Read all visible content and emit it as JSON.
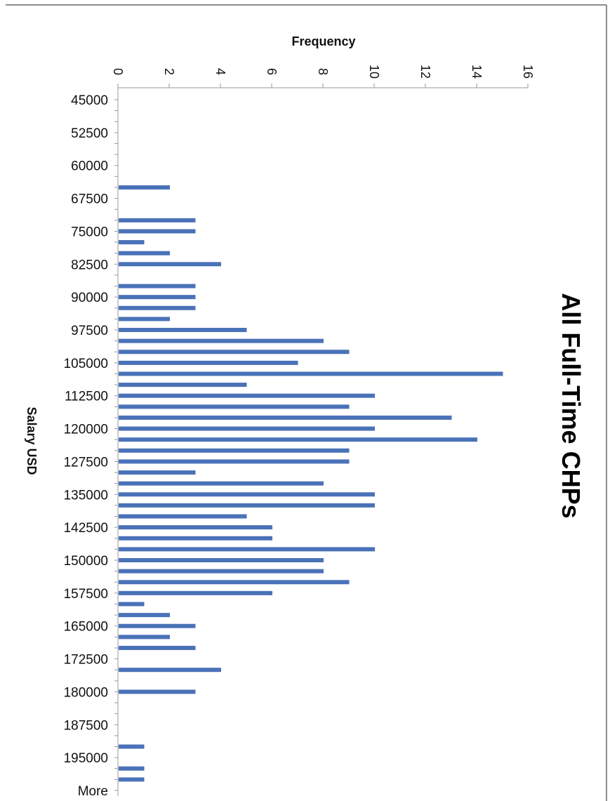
{
  "chart_data": {
    "type": "bar",
    "orientation": "horizontal",
    "title": "All Full-Time CHPs",
    "xlabel": "Frequency",
    "ylabel": "Salary USD",
    "xlim": [
      0,
      16
    ],
    "x_ticks": [
      "0",
      "2",
      "4",
      "6",
      "8",
      "10",
      "12",
      "14",
      "16"
    ],
    "category_labels_shown": [
      "45000",
      "52500",
      "60000",
      "67500",
      "75000",
      "82500",
      "90000",
      "97500",
      "105000",
      "112500",
      "120000",
      "127500",
      "135000",
      "142500",
      "150000",
      "157500",
      "165000",
      "172500",
      "180000",
      "187500",
      "195000",
      "More"
    ],
    "bin_step": 2500,
    "categories": [
      "45000",
      "47500",
      "50000",
      "52500",
      "55000",
      "57500",
      "60000",
      "62500",
      "65000",
      "67500",
      "70000",
      "72500",
      "75000",
      "77500",
      "80000",
      "82500",
      "85000",
      "87500",
      "90000",
      "92500",
      "95000",
      "97500",
      "100000",
      "102500",
      "105000",
      "107500",
      "110000",
      "112500",
      "115000",
      "117500",
      "120000",
      "122500",
      "125000",
      "127500",
      "130000",
      "132500",
      "135000",
      "137500",
      "140000",
      "142500",
      "145000",
      "147500",
      "150000",
      "152500",
      "155000",
      "157500",
      "160000",
      "162500",
      "165000",
      "167500",
      "170000",
      "172500",
      "175000",
      "177500",
      "180000",
      "182500",
      "185000",
      "187500",
      "190000",
      "192500",
      "195000",
      "197500",
      "200000",
      "More"
    ],
    "values": [
      0,
      0,
      0,
      0,
      0,
      0,
      0,
      0,
      2,
      0,
      0,
      3,
      3,
      1,
      2,
      4,
      0,
      3,
      3,
      3,
      2,
      5,
      8,
      9,
      7,
      15,
      5,
      10,
      9,
      13,
      10,
      14,
      9,
      9,
      3,
      8,
      10,
      10,
      5,
      6,
      6,
      10,
      8,
      8,
      9,
      6,
      1,
      2,
      3,
      2,
      3,
      0,
      4,
      0,
      3,
      0,
      0,
      0,
      0,
      1,
      0,
      1,
      1,
      0
    ],
    "grid": false,
    "legend": "none",
    "bar_color": "#4a72b8"
  }
}
